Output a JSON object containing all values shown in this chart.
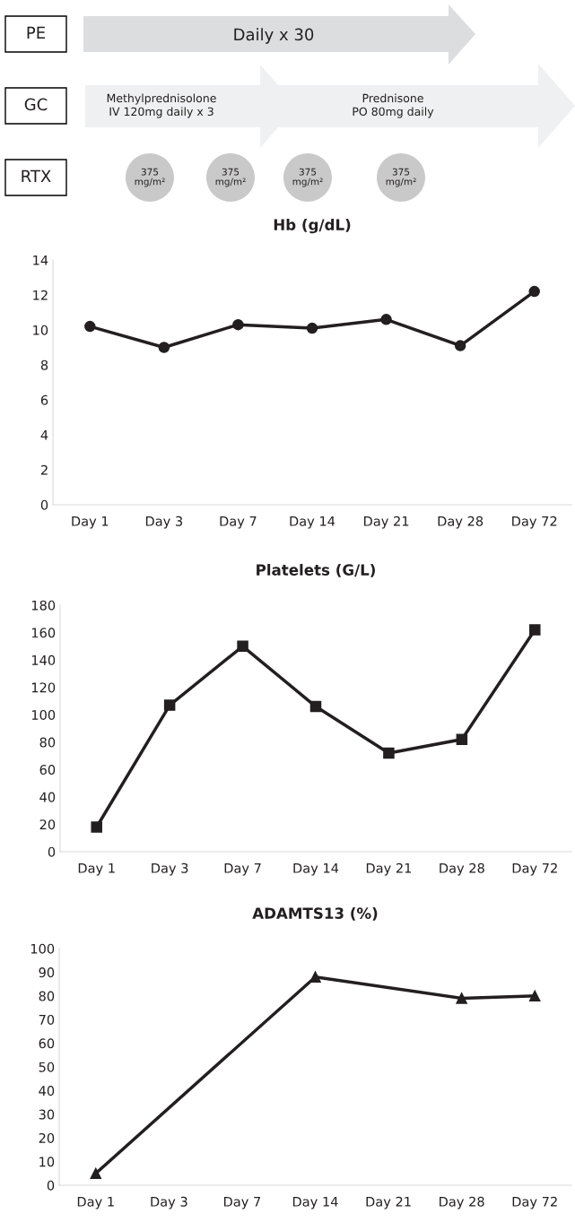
{
  "chart_data": [
    {
      "type": "other",
      "annotations": [
        "PE",
        "GC",
        "RTX",
        "Daily x 30",
        "Methylprednisolone\nIV 120mg daily x 3",
        "Prednisone\nPO 80mg daily",
        "375\nmg/m²",
        "375\nmg/m²",
        "375\nmg/m²",
        "375\nmg/m²"
      ]
    },
    {
      "type": "line",
      "title": "Hb (g/dL)",
      "categories": [
        "Day 1",
        "Day 3",
        "Day 7",
        "Day 14",
        "Day 21",
        "Day 28",
        "Day 72"
      ],
      "series": [
        {
          "color": "#231f20",
          "values": [
            10.2,
            9.0,
            10.3,
            10.1,
            10.6,
            9.1,
            12.2
          ]
        }
      ],
      "ylim": [
        0,
        14
      ],
      "yticks": [
        0,
        2,
        4,
        6,
        8,
        10,
        12,
        14
      ],
      "marker": "circle"
    },
    {
      "type": "line",
      "title": "Platelets (G/L)",
      "categories": [
        "Day 1",
        "Day 3",
        "Day 7",
        "Day 14",
        "Day 21",
        "Day 28",
        "Day 72"
      ],
      "series": [
        {
          "color": "#231f20",
          "values": [
            18,
            107,
            150,
            106,
            72,
            82,
            162
          ]
        }
      ],
      "ylim": [
        0,
        180
      ],
      "yticks": [
        0,
        20,
        40,
        60,
        80,
        100,
        120,
        140,
        160,
        180
      ],
      "marker": "square"
    },
    {
      "type": "line",
      "title": "ADAMTS13 (%)",
      "categories": [
        "Day 1",
        "Day 3",
        "Day 7",
        "Day 14",
        "Day 21",
        "Day 28",
        "Day 72"
      ],
      "series": [
        {
          "color": "#231f20",
          "values": [
            5,
            null,
            null,
            88,
            null,
            79,
            80
          ]
        }
      ],
      "ylim": [
        0,
        100
      ],
      "yticks": [
        0,
        10,
        20,
        30,
        40,
        50,
        60,
        70,
        80,
        90,
        100
      ],
      "marker": "triangle"
    }
  ]
}
